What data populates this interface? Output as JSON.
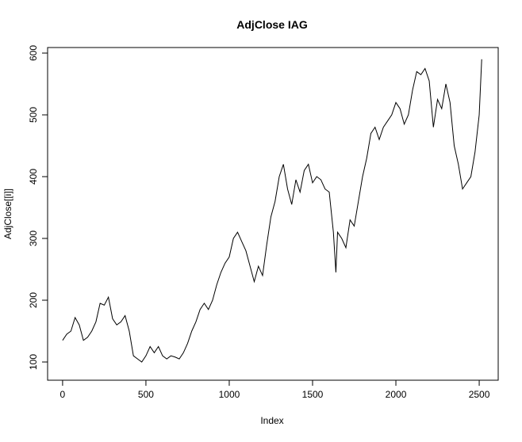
{
  "chart_data": {
    "type": "line",
    "title": "AdjClose IAG",
    "x_label": "Index",
    "y_label": "AdjClose[[i]]",
    "x": [
      0,
      25,
      50,
      75,
      100,
      125,
      150,
      175,
      200,
      225,
      250,
      275,
      300,
      325,
      350,
      375,
      400,
      425,
      450,
      475,
      500,
      525,
      550,
      575,
      600,
      625,
      650,
      675,
      700,
      725,
      750,
      775,
      800,
      825,
      850,
      875,
      900,
      925,
      950,
      975,
      1000,
      1025,
      1050,
      1075,
      1100,
      1125,
      1150,
      1175,
      1200,
      1225,
      1250,
      1275,
      1300,
      1325,
      1350,
      1375,
      1400,
      1425,
      1450,
      1475,
      1500,
      1525,
      1550,
      1575,
      1600,
      1625,
      1640,
      1650,
      1675,
      1700,
      1725,
      1750,
      1775,
      1800,
      1825,
      1850,
      1875,
      1900,
      1925,
      1950,
      1975,
      2000,
      2025,
      2050,
      2075,
      2100,
      2125,
      2150,
      2175,
      2200,
      2225,
      2250,
      2275,
      2300,
      2325,
      2350,
      2375,
      2400,
      2425,
      2450,
      2475,
      2500,
      2515
    ],
    "series": [
      {
        "name": "AdjClose",
        "color": "#000000",
        "values": [
          135,
          145,
          150,
          172,
          160,
          135,
          140,
          150,
          165,
          195,
          192,
          205,
          170,
          160,
          165,
          175,
          150,
          110,
          105,
          100,
          110,
          125,
          115,
          125,
          110,
          105,
          110,
          108,
          105,
          115,
          130,
          150,
          165,
          185,
          195,
          185,
          200,
          225,
          245,
          260,
          270,
          300,
          310,
          295,
          280,
          255,
          230,
          255,
          240,
          290,
          335,
          360,
          400,
          420,
          380,
          355,
          395,
          375,
          410,
          420,
          390,
          400,
          395,
          380,
          375,
          310,
          245,
          310,
          300,
          285,
          330,
          320,
          360,
          400,
          430,
          470,
          480,
          460,
          480,
          490,
          500,
          520,
          510,
          485,
          500,
          540,
          570,
          565,
          575,
          555,
          480,
          525,
          510,
          550,
          520,
          450,
          420,
          380,
          390,
          400,
          440,
          500,
          590
        ]
      }
    ],
    "xlim": [
      -90,
      2614
    ],
    "ylim": [
      70.5,
      609
    ],
    "xticks": [
      0,
      500,
      1000,
      1500,
      2000,
      2500
    ],
    "yticks": [
      100,
      200,
      300,
      400,
      500,
      600
    ]
  }
}
